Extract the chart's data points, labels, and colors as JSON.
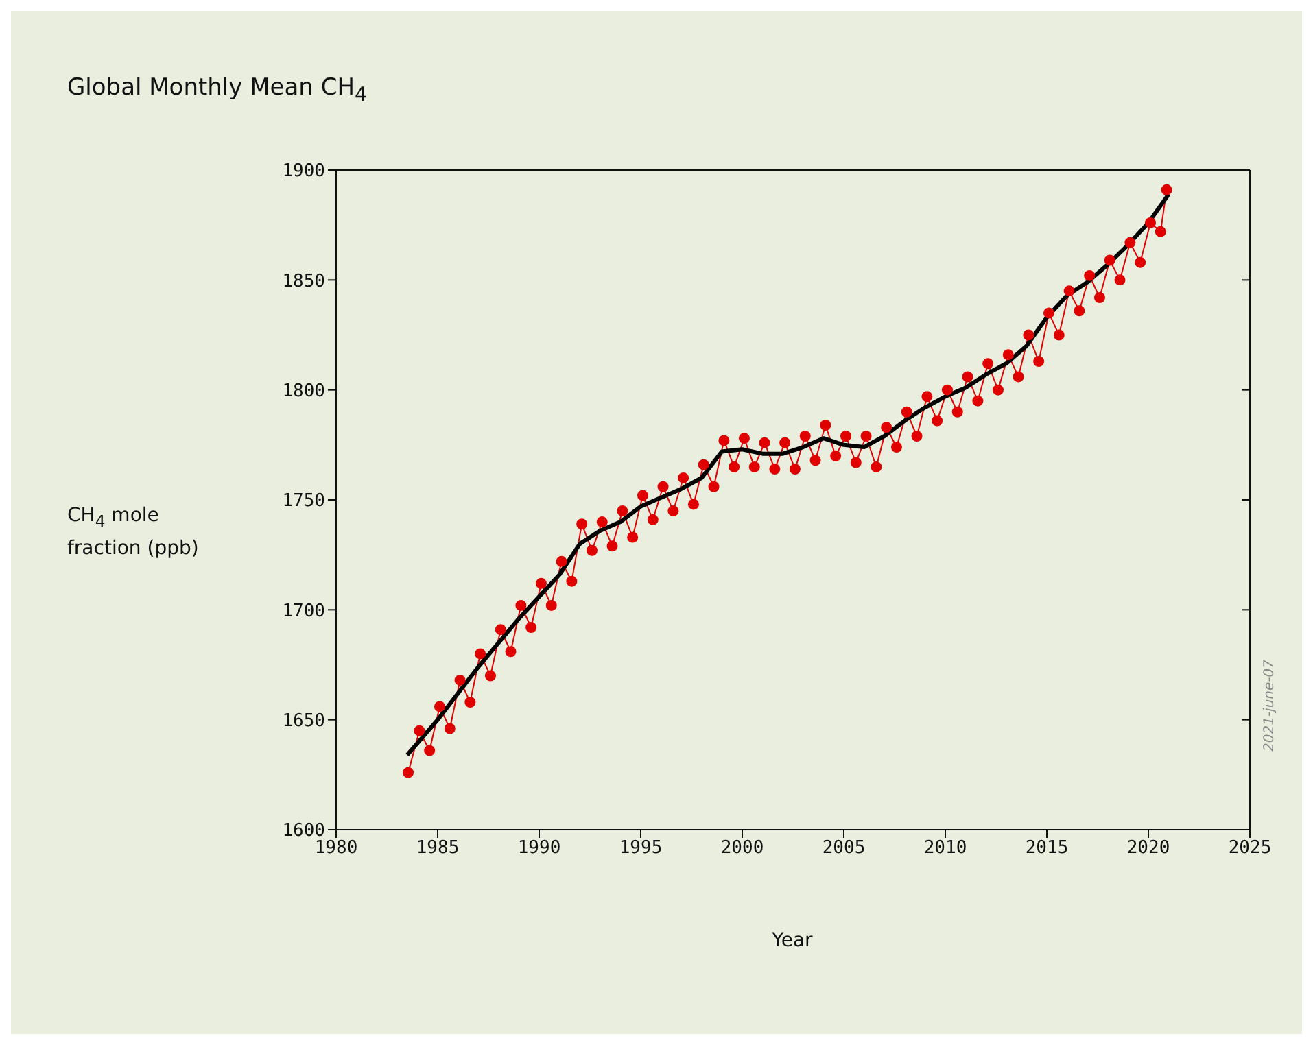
{
  "chart_data": {
    "type": "line",
    "title": "Global Monthly Mean CH$_{4}$",
    "xlabel": "Year",
    "ylabel": "CH$_{4}$ mole fraction (ppb)",
    "annotations": [
      "2021-june-07"
    ],
    "xlim": [
      1980,
      2025
    ],
    "xticks": [
      1980,
      1985,
      1990,
      1995,
      2000,
      2005,
      2010,
      2015,
      2020,
      2025
    ],
    "ylim": [
      1600,
      1900
    ],
    "yticks": [
      1600,
      1650,
      1700,
      1750,
      1800,
      1850,
      1900
    ],
    "series": [
      {
        "color": "#e00000",
        "marker": "circle",
        "x": [
          1983.55,
          1984.1,
          1984.6,
          1985.1,
          1985.6,
          1986.1,
          1986.6,
          1987.1,
          1987.6,
          1988.1,
          1988.6,
          1989.1,
          1989.6,
          1990.1,
          1990.6,
          1991.1,
          1991.6,
          1992.1,
          1992.6,
          1993.1,
          1993.6,
          1994.1,
          1994.6,
          1995.1,
          1995.6,
          1996.1,
          1996.6,
          1997.1,
          1997.6,
          1998.1,
          1998.6,
          1999.1,
          1999.6,
          2000.1,
          2000.6,
          2001.1,
          2001.6,
          2002.1,
          2002.6,
          2003.1,
          2003.6,
          2004.1,
          2004.6,
          2005.1,
          2005.6,
          2006.1,
          2006.6,
          2007.1,
          2007.6,
          2008.1,
          2008.6,
          2009.1,
          2009.6,
          2010.1,
          2010.6,
          2011.1,
          2011.6,
          2012.1,
          2012.6,
          2013.1,
          2013.6,
          2014.1,
          2014.6,
          2015.1,
          2015.6,
          2016.1,
          2016.6,
          2017.1,
          2017.6,
          2018.1,
          2018.6,
          2019.1,
          2019.6,
          2020.1,
          2020.6,
          2020.9
        ],
        "values": [
          1626,
          1645,
          1636,
          1656,
          1646,
          1668,
          1658,
          1680,
          1670,
          1691,
          1681,
          1702,
          1692,
          1712,
          1702,
          1722,
          1713,
          1739,
          1727,
          1740,
          1729,
          1745,
          1733,
          1752,
          1741,
          1756,
          1745,
          1760,
          1748,
          1766,
          1756,
          1777,
          1765,
          1778,
          1765,
          1776,
          1764,
          1776,
          1764,
          1779,
          1768,
          1784,
          1770,
          1779,
          1767,
          1779,
          1765,
          1783,
          1774,
          1790,
          1779,
          1797,
          1786,
          1800,
          1790,
          1806,
          1795,
          1812,
          1800,
          1816,
          1806,
          1825,
          1813,
          1835,
          1825,
          1845,
          1836,
          1852,
          1842,
          1859,
          1850,
          1867,
          1858,
          1876,
          1872,
          1891
        ]
      },
      {
        "color": "#000000",
        "marker": "none",
        "x": [
          1983.5,
          1985,
          1986,
          1987,
          1988,
          1989,
          1990,
          1991,
          1992,
          1993,
          1994,
          1995,
          1996,
          1997,
          1998,
          1999,
          2000,
          2001,
          2002,
          2003,
          2004,
          2005,
          2006,
          2007,
          2008,
          2009,
          2010,
          2011,
          2012,
          2013,
          2014,
          2015,
          2016,
          2017,
          2018,
          2019,
          2020,
          2021
        ],
        "values": [
          1634,
          1650,
          1662,
          1674,
          1685,
          1696,
          1706,
          1716,
          1730,
          1736,
          1740,
          1747,
          1751,
          1755,
          1760,
          1772,
          1773,
          1771,
          1771,
          1774,
          1778,
          1775,
          1774,
          1779,
          1786,
          1792,
          1797,
          1801,
          1807,
          1812,
          1820,
          1833,
          1843,
          1849,
          1857,
          1866,
          1876,
          1889
        ]
      }
    ]
  }
}
